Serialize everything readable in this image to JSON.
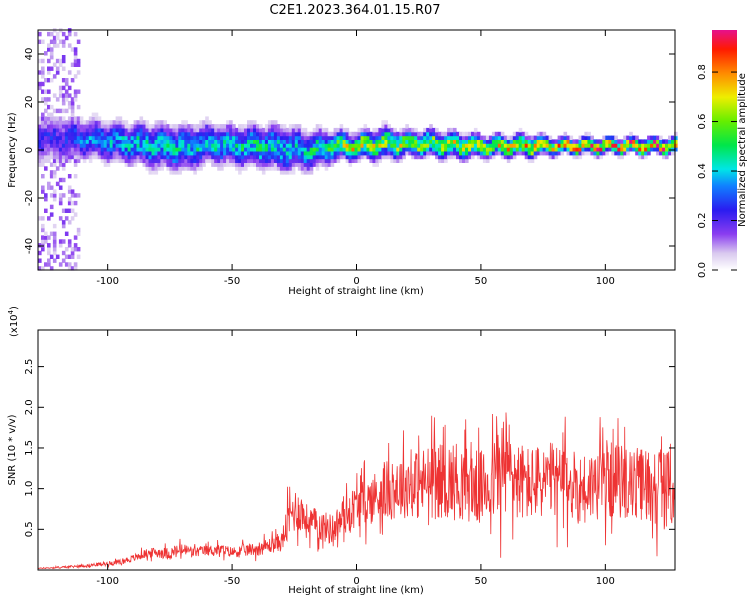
{
  "title": "C2E1.2023.364.01.15.R07",
  "chart_data": [
    {
      "type": "heatmap",
      "xlabel": "Height of straight line (km)",
      "ylabel": "Frequency (Hz)",
      "xlim": [
        -128,
        128
      ],
      "ylim": [
        -50,
        50
      ],
      "xticks": [
        -100,
        -50,
        0,
        50,
        100
      ],
      "yticks": [
        -40,
        -20,
        0,
        20,
        40
      ],
      "colorbar": {
        "label": "Normalized spectral amplitude",
        "range": [
          0,
          0.97
        ],
        "ticks": [
          "0.0",
          "0.2",
          "0.4",
          "0.6",
          "0.8"
        ]
      },
      "ridge": {
        "x": [
          -120,
          -110,
          -100,
          -90,
          -80,
          -70,
          -60,
          -50,
          -40,
          -30,
          -20,
          -10,
          0,
          10,
          20,
          30,
          40,
          50,
          60,
          70,
          80,
          90,
          100,
          110,
          125
        ],
        "y": [
          4,
          4,
          3,
          2,
          1,
          0,
          2,
          1,
          1,
          0,
          -1,
          1,
          1,
          2,
          2,
          2,
          1,
          1,
          1,
          1,
          1,
          1,
          1,
          1,
          1
        ],
        "halfwidth": [
          10,
          8,
          8,
          8,
          9,
          9,
          8,
          8,
          8,
          9,
          8,
          6,
          5,
          6,
          5,
          5,
          5,
          4,
          4,
          4,
          3,
          3,
          3,
          3,
          3
        ],
        "peak_amplitude": [
          0.25,
          0.35,
          0.4,
          0.45,
          0.45,
          0.45,
          0.45,
          0.45,
          0.5,
          0.45,
          0.45,
          0.6,
          0.75,
          0.7,
          0.65,
          0.7,
          0.7,
          0.75,
          0.8,
          0.85,
          0.85,
          0.9,
          0.9,
          0.9,
          0.9
        ]
      }
    },
    {
      "type": "line",
      "xlabel": "Height of straight line (km)",
      "ylabel": "SNR (10 * v/v)",
      "yexponent_label": "(x10",
      "yexponent_power": "4",
      "yexponent_close": ")",
      "xlim": [
        -128,
        128
      ],
      "ylim": [
        0,
        2.95
      ],
      "xticks": [
        -100,
        -50,
        0,
        50,
        100
      ],
      "yticks": [
        "0.5",
        "1.0",
        "1.5",
        "2.0",
        "2.5"
      ],
      "color": "#ee3333",
      "series": [
        {
          "x": [
            -128,
            -120,
            -110,
            -100,
            -95,
            -90,
            -85,
            -80,
            -75,
            -70,
            -65,
            -60,
            -55,
            -50,
            -45,
            -40,
            -35,
            -30,
            -28,
            -26,
            -24,
            -22,
            -20,
            -15,
            -10,
            -5,
            0,
            5,
            10,
            15,
            20,
            25,
            30,
            35,
            40,
            45,
            50,
            55,
            58,
            60,
            62,
            65,
            70,
            75,
            80,
            85,
            90,
            95,
            100,
            105,
            110,
            115,
            120,
            125,
            128
          ],
          "y": [
            0.02,
            0.03,
            0.05,
            0.08,
            0.1,
            0.14,
            0.2,
            0.22,
            0.2,
            0.25,
            0.22,
            0.24,
            0.25,
            0.22,
            0.24,
            0.26,
            0.3,
            0.35,
            0.55,
            0.7,
            0.75,
            0.7,
            0.6,
            0.55,
            0.5,
            0.65,
            0.8,
            0.85,
            0.95,
            1.0,
            1.05,
            1.05,
            1.1,
            1.1,
            1.1,
            1.05,
            1.0,
            1.1,
            1.25,
            1.3,
            1.2,
            1.1,
            1.05,
            1.1,
            1.1,
            1.05,
            1.0,
            1.05,
            1.1,
            1.1,
            1.05,
            1.05,
            1.05,
            1.0,
            1.0
          ],
          "noise_spread": [
            0.01,
            0.02,
            0.03,
            0.05,
            0.06,
            0.08,
            0.1,
            0.12,
            0.14,
            0.15,
            0.12,
            0.12,
            0.13,
            0.12,
            0.14,
            0.15,
            0.18,
            0.22,
            0.45,
            0.5,
            0.5,
            0.45,
            0.4,
            0.35,
            0.35,
            0.4,
            0.5,
            0.55,
            0.65,
            0.7,
            0.75,
            0.8,
            0.85,
            0.85,
            0.9,
            0.85,
            0.85,
            0.9,
            1.2,
            1.35,
            1.1,
            0.9,
            0.85,
            0.85,
            0.85,
            0.85,
            0.8,
            0.8,
            0.85,
            0.85,
            0.8,
            0.85,
            0.9,
            0.85,
            0.85
          ]
        }
      ]
    }
  ]
}
